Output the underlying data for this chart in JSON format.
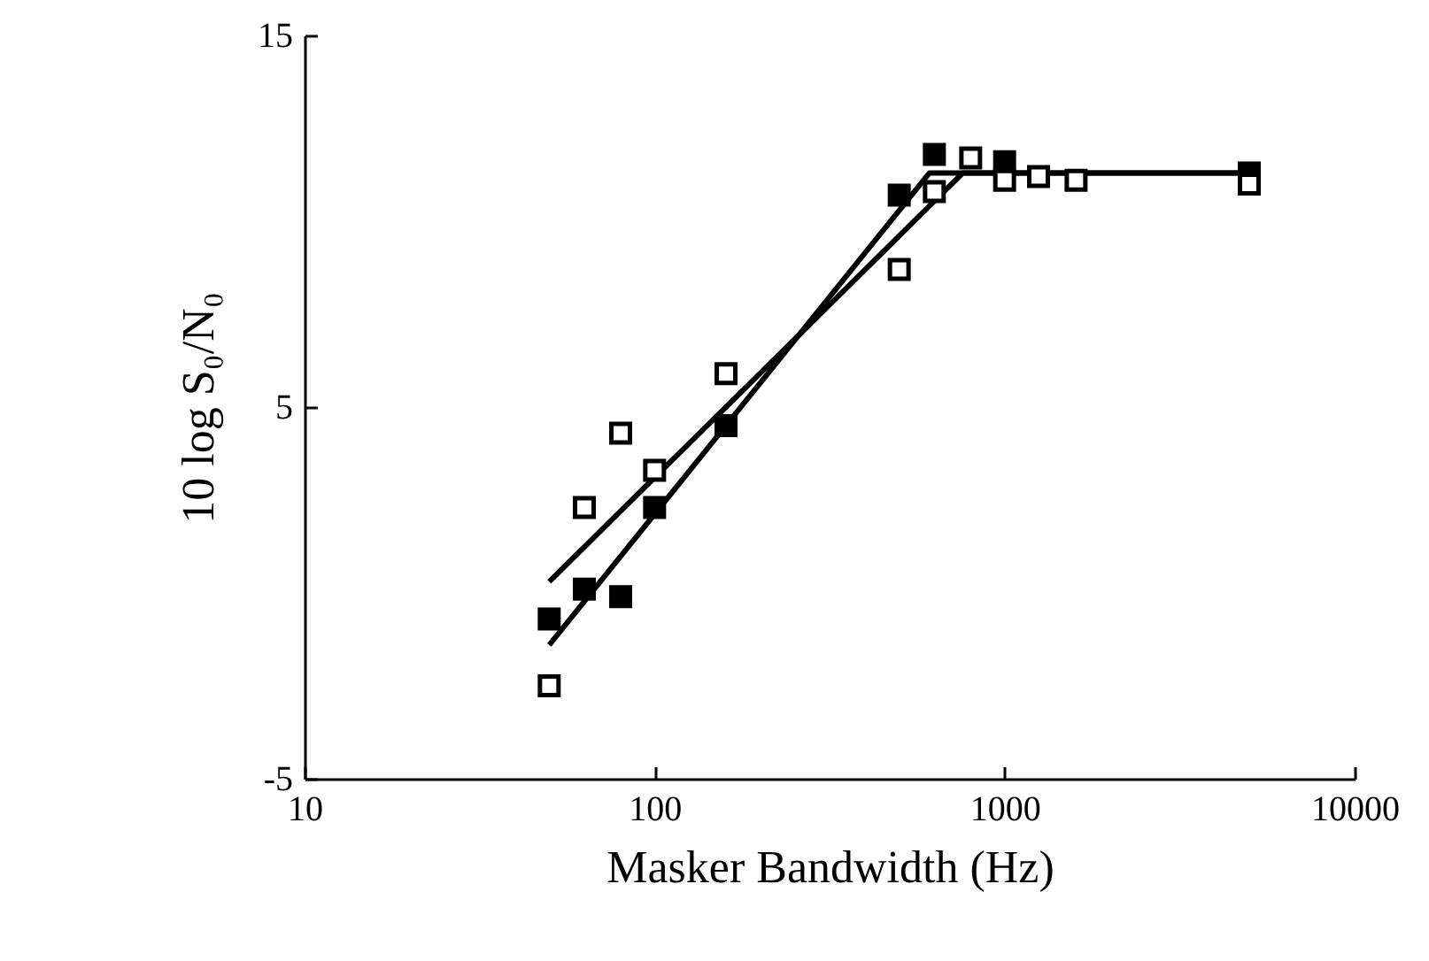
{
  "chart_data": {
    "type": "scatter",
    "xlabel": "Masker Bandwidth (Hz)",
    "ylabel": "10 log S₀/N₀",
    "log": "x",
    "xlim": [
      10,
      10000
    ],
    "xticks": [
      10,
      100,
      1000,
      10000
    ],
    "ylim": [
      -5,
      15
    ],
    "yticks": [
      -5,
      5,
      15
    ],
    "marker": "square",
    "grid": false,
    "series": [
      {
        "color": "#000000",
        "x": [
          50,
          63,
          80,
          100,
          160,
          500,
          630,
          1000,
          5000
        ],
        "values": [
          -0.7,
          0.1,
          -0.1,
          2.3,
          4.5,
          10.7,
          11.8,
          11.6,
          11.3
        ]
      },
      {
        "color": "#000000",
        "marker": "square-open",
        "x": [
          50,
          63,
          80,
          100,
          160,
          500,
          630,
          800,
          1000,
          1250,
          1600,
          5000
        ],
        "values": [
          -2.5,
          2.3,
          4.3,
          3.3,
          5.9,
          8.7,
          10.8,
          11.7,
          11.1,
          11.2,
          11.1,
          11.0
        ]
      },
      {
        "type": "line",
        "color": "#000000",
        "marker": "none",
        "line_style": "solid",
        "x": [
          50,
          610,
          5000
        ],
        "values": [
          -1.4,
          11.3,
          11.3
        ]
      },
      {
        "type": "line",
        "color": "#000000",
        "marker": "none",
        "line_style": "solid",
        "x": [
          50,
          760,
          5000
        ],
        "values": [
          0.3,
          11.3,
          11.3
        ]
      }
    ]
  }
}
